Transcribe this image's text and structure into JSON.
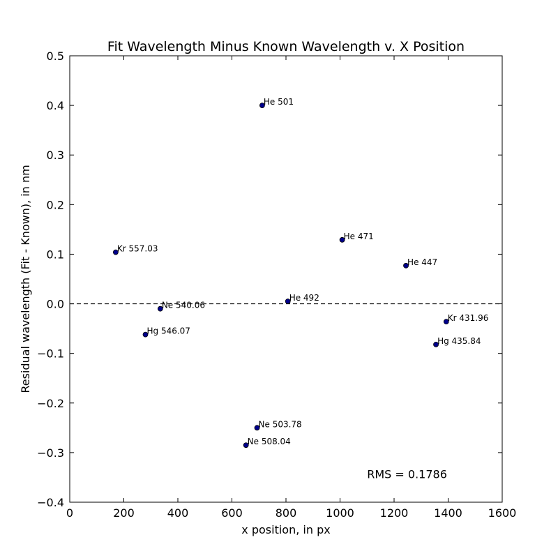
{
  "chart_data": {
    "type": "scatter",
    "title": "Fit Wavelength Minus Known Wavelength v. X Position",
    "xlabel": "x position, in px",
    "ylabel": "Residual wavelength (Fit - Known), in nm",
    "xlim": [
      0,
      1600
    ],
    "ylim": [
      -0.4,
      0.5
    ],
    "xticks": [
      0,
      200,
      400,
      600,
      800,
      1000,
      1200,
      1400,
      1600
    ],
    "yticks": [
      -0.4,
      -0.3,
      -0.2,
      -0.1,
      0.0,
      0.1,
      0.2,
      0.3,
      0.4,
      0.5
    ],
    "xtick_labels": [
      "0",
      "200",
      "400",
      "600",
      "800",
      "1000",
      "1200",
      "1400",
      "1600"
    ],
    "ytick_labels": [
      "−0.4",
      "−0.3",
      "−0.2",
      "−0.1",
      "0.0",
      "0.1",
      "0.2",
      "0.3",
      "0.4",
      "0.5"
    ],
    "grid": false,
    "reference_line": {
      "y": 0.0,
      "style": "dashed",
      "color": "#000000"
    },
    "point_color": "#00008b",
    "points": [
      {
        "label": "Kr 557.03",
        "x": 170,
        "y": 0.104
      },
      {
        "label": "Hg 546.07",
        "x": 280,
        "y": -0.062
      },
      {
        "label": "Ne 540.06",
        "x": 335,
        "y": -0.01
      },
      {
        "label": "Ne 508.04",
        "x": 652,
        "y": -0.285
      },
      {
        "label": "Ne 503.78",
        "x": 693,
        "y": -0.25
      },
      {
        "label": "He 501",
        "x": 712,
        "y": 0.4
      },
      {
        "label": "He 492",
        "x": 807,
        "y": 0.005
      },
      {
        "label": "He 471",
        "x": 1008,
        "y": 0.129
      },
      {
        "label": "He 447",
        "x": 1244,
        "y": 0.077
      },
      {
        "label": "Hg 435.84",
        "x": 1355,
        "y": -0.082
      },
      {
        "label": "Kr 431.96",
        "x": 1393,
        "y": -0.036
      }
    ],
    "annotation": {
      "text": "RMS = 0.1786",
      "x": 1100,
      "y": -0.343
    }
  }
}
